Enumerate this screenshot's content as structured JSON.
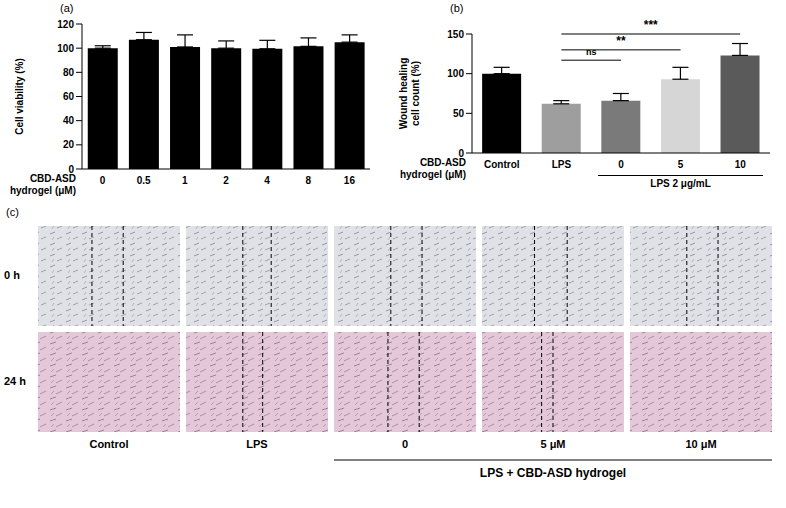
{
  "chart_data": [
    {
      "type": "bar",
      "panel": "(a)",
      "x_label": "CBD-ASD hydrogel (μM)",
      "y_label": "Cell viability (%)",
      "categories": [
        "0",
        "0.5",
        "1",
        "2",
        "4",
        "8",
        "16"
      ],
      "values": [
        100,
        107,
        101,
        100,
        99.5,
        101.5,
        105
      ],
      "errors": [
        2,
        6,
        10,
        6,
        7,
        7,
        6
      ],
      "color": "#000000",
      "ylim": [
        0,
        120
      ],
      "yticks": [
        0,
        20,
        40,
        60,
        80,
        100,
        120
      ],
      "grid": false
    },
    {
      "type": "bar",
      "panel": "(b)",
      "x_label": "CBD-ASD hydrogel (μM)",
      "y_label": "Wound healing cell count (%)",
      "categories": [
        "Control",
        "LPS",
        "0",
        "5",
        "10"
      ],
      "values": [
        100,
        62,
        66,
        93,
        123
      ],
      "errors": [
        8,
        4,
        9,
        15,
        15
      ],
      "colors": [
        "#000000",
        "#9e9e9e",
        "#7a7a7a",
        "#d6d6d6",
        "#5a5a5a"
      ],
      "ylim": [
        0,
        150
      ],
      "yticks": [
        0,
        50,
        100,
        150
      ],
      "grid": false,
      "group_label": {
        "label": "LPS 2 μg/mL",
        "categories": [
          "0",
          "5",
          "10"
        ]
      },
      "annotations": [
        {
          "between": [
            "LPS",
            "0"
          ],
          "y": 117,
          "label": "ns"
        },
        {
          "between": [
            "LPS",
            "5"
          ],
          "y": 130,
          "label": "**"
        },
        {
          "between": [
            "LPS",
            "10"
          ],
          "y": 150,
          "label": "***"
        }
      ]
    }
  ],
  "panel_c": {
    "label": "(c)",
    "rows": [
      "0 h",
      "24 h"
    ],
    "columns": [
      "Control",
      "LPS",
      "0",
      "5 μM",
      "10 μM"
    ],
    "group": {
      "label": "LPS + CBD-ASD hydrogel",
      "columns": [
        "0",
        "5 μM",
        "10 μM"
      ]
    }
  }
}
